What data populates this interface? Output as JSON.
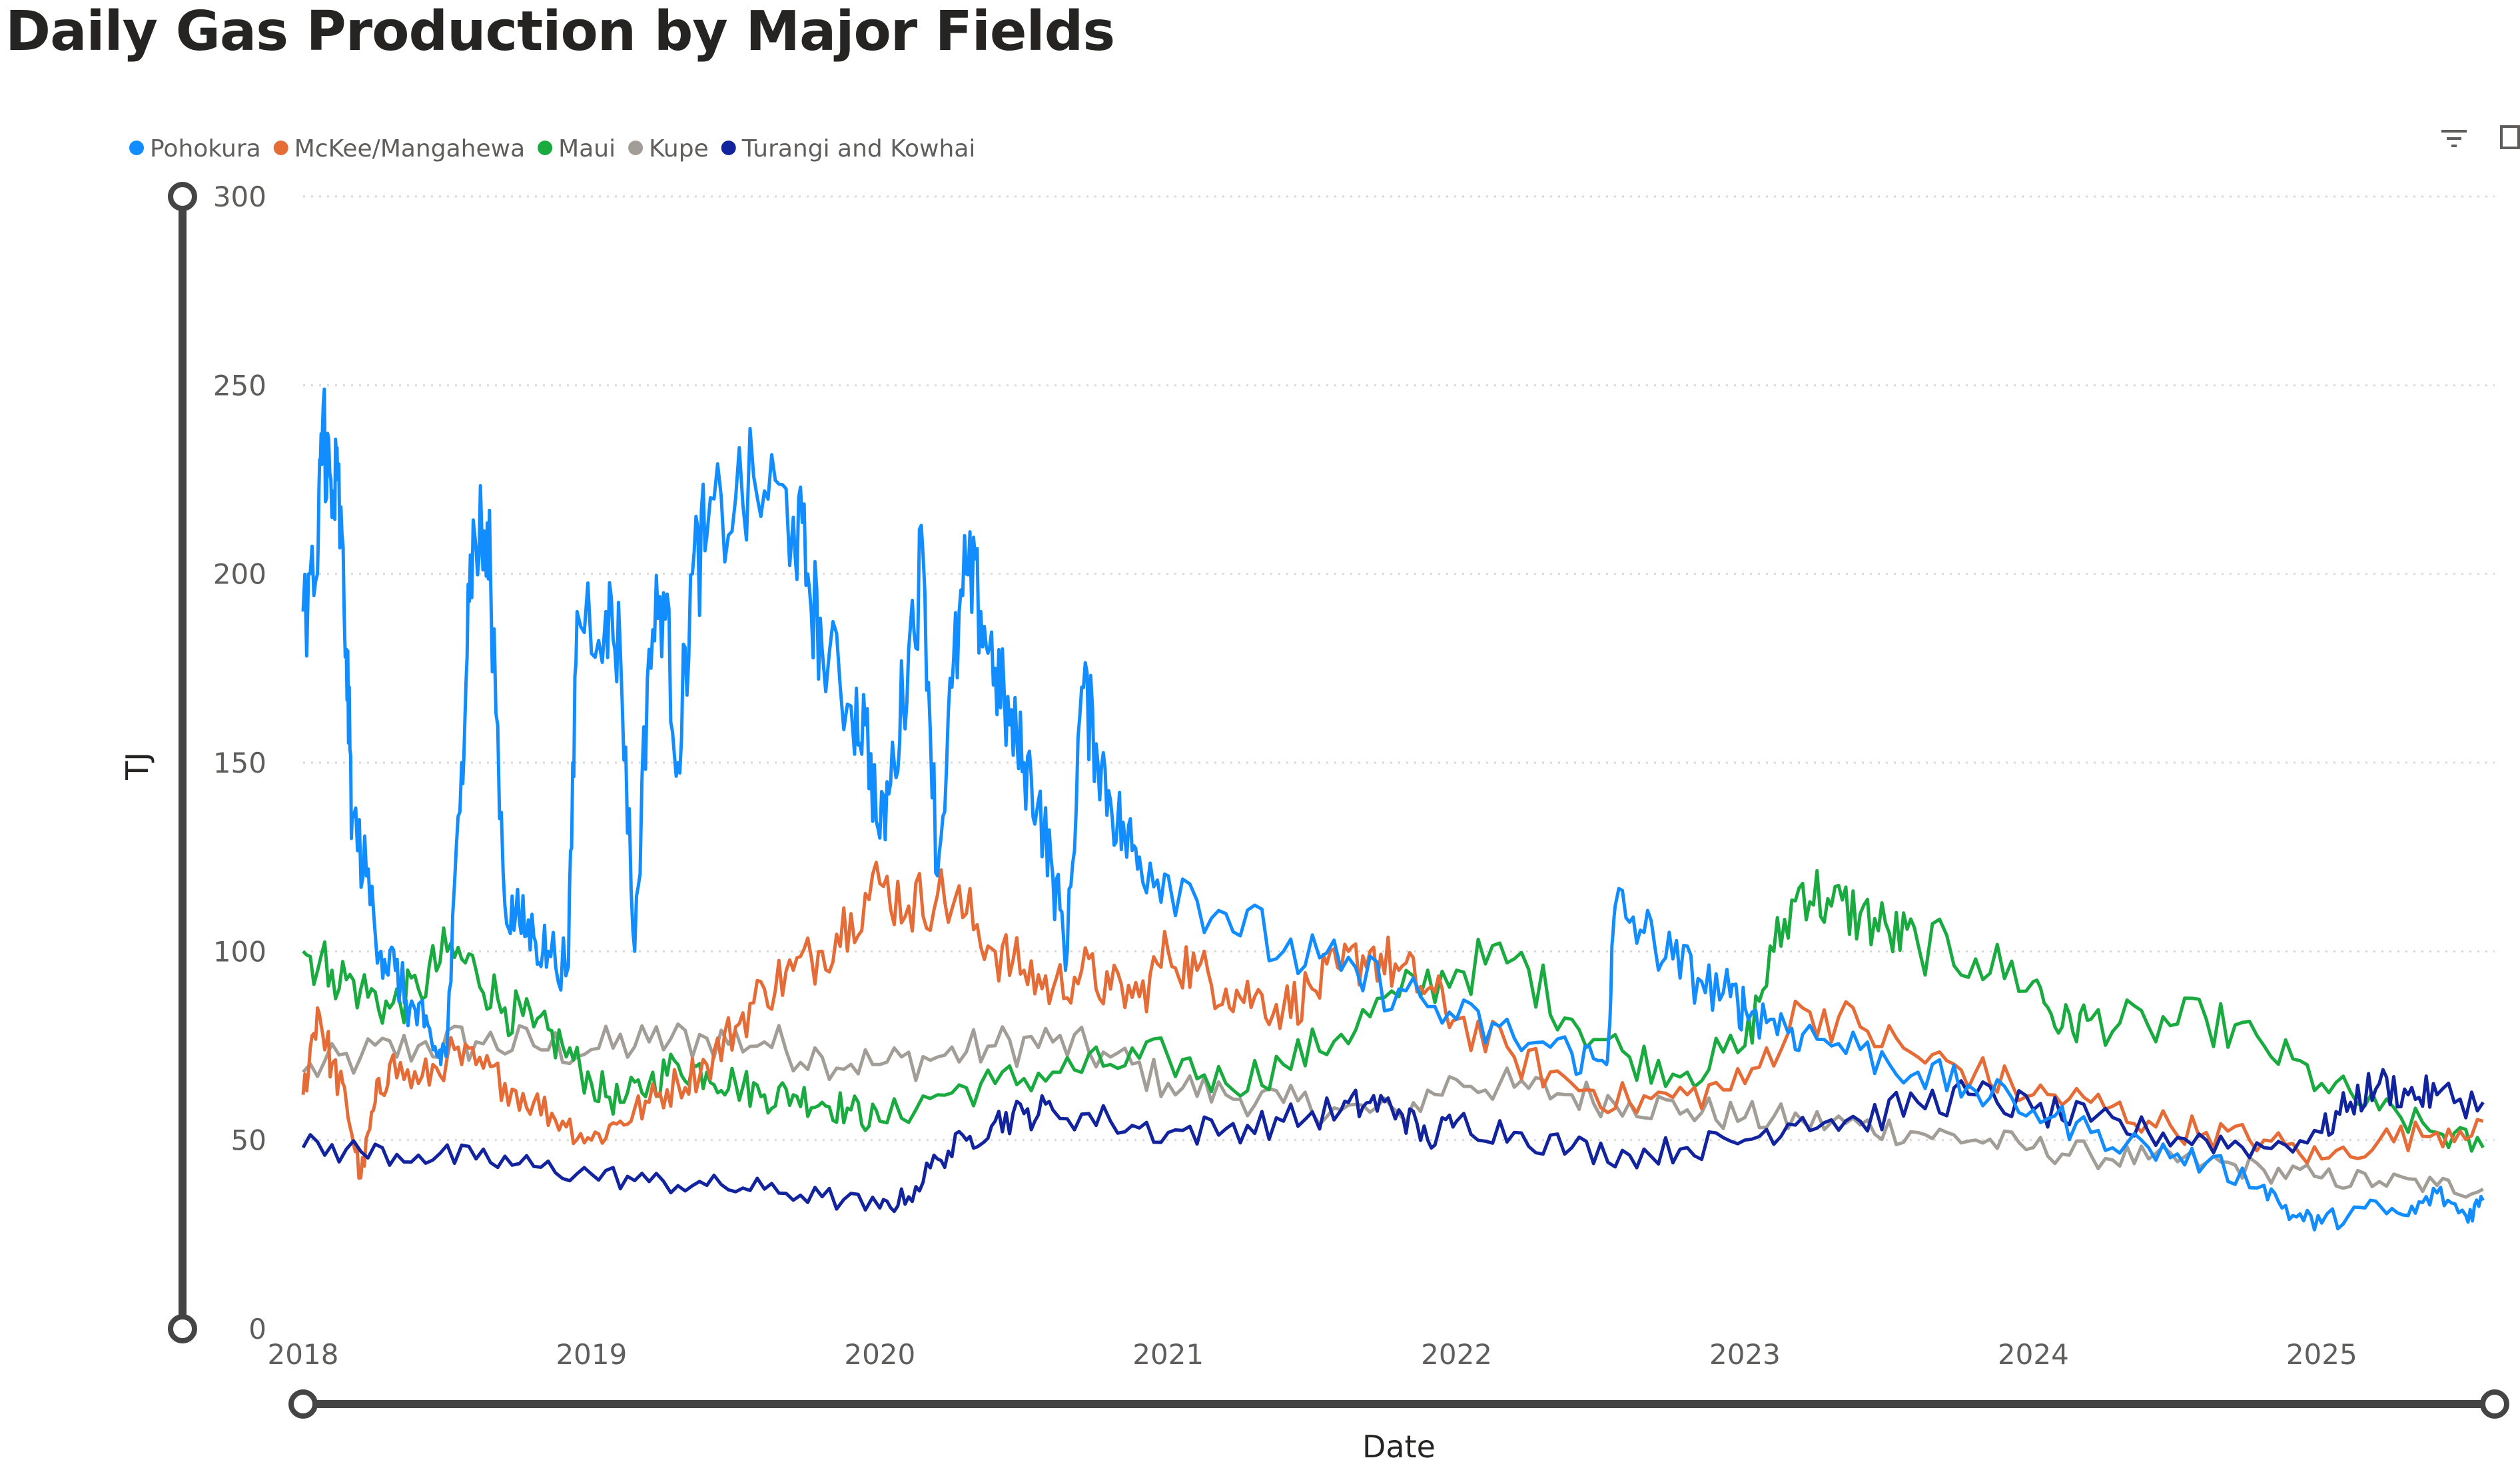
{
  "title": "Daily Gas Production by Major Fields",
  "chart_data": {
    "type": "line",
    "title": "Daily Gas Production by Major Fields",
    "xlabel": "Date",
    "ylabel": "TJ",
    "x_ticks": [
      "2018",
      "2019",
      "2020",
      "2021",
      "2022",
      "2023",
      "2024",
      "2025"
    ],
    "y_ticks": [
      0,
      50,
      100,
      150,
      200,
      250,
      300
    ],
    "xlim": [
      2018.0,
      2025.6
    ],
    "ylim": [
      0,
      300
    ],
    "grid": "horizontal dotted",
    "legend_position": "top-left",
    "series": [
      {
        "name": "Pohokura",
        "color": "#118DFF",
        "points": [
          [
            2018.0,
            190
          ],
          [
            2018.05,
            200
          ],
          [
            2018.07,
            245
          ],
          [
            2018.1,
            215
          ],
          [
            2018.12,
            225
          ],
          [
            2018.15,
            180
          ],
          [
            2018.17,
            135
          ],
          [
            2018.22,
            120
          ],
          [
            2018.27,
            100
          ],
          [
            2018.32,
            95
          ],
          [
            2018.37,
            85
          ],
          [
            2018.42,
            80
          ],
          [
            2018.47,
            72
          ],
          [
            2018.5,
            75
          ],
          [
            2018.55,
            150
          ],
          [
            2018.58,
            205
          ],
          [
            2018.62,
            210
          ],
          [
            2018.65,
            200
          ],
          [
            2018.7,
            112
          ],
          [
            2018.75,
            108
          ],
          [
            2018.8,
            104
          ],
          [
            2018.85,
            100
          ],
          [
            2018.92,
            96
          ],
          [
            2018.95,
            190
          ],
          [
            2019.05,
            190
          ],
          [
            2019.1,
            180
          ],
          [
            2019.15,
            100
          ],
          [
            2019.2,
            180
          ],
          [
            2019.25,
            195
          ],
          [
            2019.3,
            150
          ],
          [
            2019.35,
            200
          ],
          [
            2019.4,
            210
          ],
          [
            2019.5,
            220
          ],
          [
            2019.6,
            222
          ],
          [
            2019.7,
            215
          ],
          [
            2019.75,
            200
          ],
          [
            2019.8,
            180
          ],
          [
            2019.9,
            165
          ],
          [
            2019.95,
            160
          ],
          [
            2020.0,
            130
          ],
          [
            2020.05,
            150
          ],
          [
            2020.1,
            180
          ],
          [
            2020.15,
            205
          ],
          [
            2020.2,
            120
          ],
          [
            2020.25,
            170
          ],
          [
            2020.3,
            200
          ],
          [
            2020.35,
            190
          ],
          [
            2020.4,
            175
          ],
          [
            2020.45,
            160
          ],
          [
            2020.5,
            150
          ],
          [
            2020.55,
            140
          ],
          [
            2020.6,
            120
          ],
          [
            2020.65,
            100
          ],
          [
            2020.7,
            170
          ],
          [
            2020.75,
            155
          ],
          [
            2020.8,
            140
          ],
          [
            2020.85,
            130
          ],
          [
            2020.9,
            125
          ],
          [
            2021.0,
            120
          ],
          [
            2021.2,
            110
          ],
          [
            2021.4,
            100
          ],
          [
            2021.6,
            95
          ],
          [
            2021.8,
            90
          ],
          [
            2022.0,
            82
          ],
          [
            2022.2,
            77
          ],
          [
            2022.4,
            73
          ],
          [
            2022.52,
            70
          ],
          [
            2022.55,
            112
          ],
          [
            2022.65,
            105
          ],
          [
            2022.75,
            98
          ],
          [
            2022.85,
            92
          ],
          [
            2022.95,
            88
          ],
          [
            2023.0,
            85
          ],
          [
            2023.1,
            82
          ],
          [
            2023.2,
            78
          ],
          [
            2023.4,
            74
          ],
          [
            2023.6,
            68
          ],
          [
            2023.8,
            63
          ],
          [
            2024.0,
            58
          ],
          [
            2024.2,
            52
          ],
          [
            2024.4,
            48
          ],
          [
            2024.6,
            44
          ],
          [
            2024.8,
            38
          ],
          [
            2024.9,
            30
          ],
          [
            2025.0,
            28
          ],
          [
            2025.15,
            32
          ],
          [
            2025.3,
            30
          ],
          [
            2025.4,
            36
          ],
          [
            2025.5,
            30
          ],
          [
            2025.56,
            34
          ]
        ]
      },
      {
        "name": "McKee/Mangahewa",
        "color": "#E66C37",
        "points": [
          [
            2018.0,
            62
          ],
          [
            2018.05,
            85
          ],
          [
            2018.1,
            70
          ],
          [
            2018.15,
            60
          ],
          [
            2018.2,
            40
          ],
          [
            2018.25,
            60
          ],
          [
            2018.3,
            70
          ],
          [
            2018.4,
            65
          ],
          [
            2018.5,
            72
          ],
          [
            2018.6,
            70
          ],
          [
            2018.7,
            65
          ],
          [
            2018.8,
            60
          ],
          [
            2018.9,
            55
          ],
          [
            2019.0,
            50
          ],
          [
            2019.1,
            55
          ],
          [
            2019.2,
            60
          ],
          [
            2019.3,
            65
          ],
          [
            2019.4,
            70
          ],
          [
            2019.5,
            80
          ],
          [
            2019.6,
            90
          ],
          [
            2019.7,
            95
          ],
          [
            2019.8,
            100
          ],
          [
            2019.9,
            110
          ],
          [
            2020.0,
            118
          ],
          [
            2020.1,
            112
          ],
          [
            2020.2,
            115
          ],
          [
            2020.3,
            110
          ],
          [
            2020.4,
            100
          ],
          [
            2020.5,
            95
          ],
          [
            2020.6,
            90
          ],
          [
            2020.7,
            95
          ],
          [
            2020.8,
            90
          ],
          [
            2020.9,
            88
          ],
          [
            2021.0,
            100
          ],
          [
            2021.1,
            95
          ],
          [
            2021.2,
            90
          ],
          [
            2021.3,
            88
          ],
          [
            2021.4,
            85
          ],
          [
            2021.5,
            90
          ],
          [
            2021.6,
            95
          ],
          [
            2021.7,
            100
          ],
          [
            2021.8,
            95
          ],
          [
            2021.9,
            90
          ],
          [
            2022.0,
            82
          ],
          [
            2022.2,
            72
          ],
          [
            2022.4,
            65
          ],
          [
            2022.6,
            60
          ],
          [
            2022.8,
            62
          ],
          [
            2023.0,
            65
          ],
          [
            2023.2,
            85
          ],
          [
            2023.4,
            80
          ],
          [
            2023.6,
            72
          ],
          [
            2023.8,
            68
          ],
          [
            2024.0,
            62
          ],
          [
            2024.2,
            60
          ],
          [
            2024.4,
            55
          ],
          [
            2024.6,
            52
          ],
          [
            2024.8,
            50
          ],
          [
            2025.0,
            45
          ],
          [
            2025.2,
            50
          ],
          [
            2025.4,
            52
          ],
          [
            2025.56,
            55
          ]
        ]
      },
      {
        "name": "Maui",
        "color": "#1AAB40",
        "points": [
          [
            2018.0,
            100
          ],
          [
            2018.1,
            95
          ],
          [
            2018.2,
            90
          ],
          [
            2018.3,
            85
          ],
          [
            2018.4,
            90
          ],
          [
            2018.5,
            100
          ],
          [
            2018.6,
            95
          ],
          [
            2018.7,
            85
          ],
          [
            2018.8,
            80
          ],
          [
            2018.9,
            75
          ],
          [
            2019.0,
            65
          ],
          [
            2019.1,
            60
          ],
          [
            2019.2,
            65
          ],
          [
            2019.3,
            70
          ],
          [
            2019.4,
            68
          ],
          [
            2019.5,
            65
          ],
          [
            2019.6,
            62
          ],
          [
            2019.7,
            62
          ],
          [
            2019.8,
            60
          ],
          [
            2019.9,
            58
          ],
          [
            2020.0,
            55
          ],
          [
            2020.2,
            62
          ],
          [
            2020.4,
            65
          ],
          [
            2020.6,
            68
          ],
          [
            2020.8,
            70
          ],
          [
            2021.0,
            72
          ],
          [
            2021.2,
            65
          ],
          [
            2021.4,
            70
          ],
          [
            2021.6,
            78
          ],
          [
            2021.8,
            88
          ],
          [
            2022.0,
            95
          ],
          [
            2022.2,
            98
          ],
          [
            2022.4,
            82
          ],
          [
            2022.6,
            72
          ],
          [
            2022.8,
            68
          ],
          [
            2023.0,
            75
          ],
          [
            2023.1,
            100
          ],
          [
            2023.2,
            118
          ],
          [
            2023.3,
            112
          ],
          [
            2023.4,
            110
          ],
          [
            2023.5,
            105
          ],
          [
            2023.6,
            102
          ],
          [
            2023.8,
            98
          ],
          [
            2024.0,
            92
          ],
          [
            2024.1,
            80
          ],
          [
            2024.2,
            82
          ],
          [
            2024.4,
            80
          ],
          [
            2024.6,
            82
          ],
          [
            2024.8,
            75
          ],
          [
            2025.0,
            65
          ],
          [
            2025.2,
            58
          ],
          [
            2025.4,
            52
          ],
          [
            2025.56,
            48
          ]
        ]
      },
      {
        "name": "Kupe",
        "color": "#A29D96",
        "points": [
          [
            2018.0,
            68
          ],
          [
            2018.2,
            72
          ],
          [
            2018.4,
            75
          ],
          [
            2018.6,
            76
          ],
          [
            2018.8,
            75
          ],
          [
            2019.0,
            74
          ],
          [
            2019.2,
            76
          ],
          [
            2019.4,
            77
          ],
          [
            2019.6,
            76
          ],
          [
            2019.8,
            72
          ],
          [
            2020.0,
            70
          ],
          [
            2020.2,
            72
          ],
          [
            2020.4,
            75
          ],
          [
            2020.6,
            76
          ],
          [
            2020.8,
            72
          ],
          [
            2021.0,
            65
          ],
          [
            2021.2,
            62
          ],
          [
            2021.4,
            60
          ],
          [
            2021.6,
            58
          ],
          [
            2021.8,
            57
          ],
          [
            2022.0,
            66
          ],
          [
            2022.2,
            64
          ],
          [
            2022.4,
            62
          ],
          [
            2022.6,
            60
          ],
          [
            2022.8,
            58
          ],
          [
            2023.0,
            56
          ],
          [
            2023.2,
            55
          ],
          [
            2023.4,
            54
          ],
          [
            2023.6,
            52
          ],
          [
            2023.8,
            50
          ],
          [
            2024.0,
            48
          ],
          [
            2024.2,
            46
          ],
          [
            2024.4,
            45
          ],
          [
            2024.6,
            44
          ],
          [
            2024.8,
            42
          ],
          [
            2025.0,
            40
          ],
          [
            2025.2,
            39
          ],
          [
            2025.4,
            38
          ],
          [
            2025.56,
            37
          ]
        ]
      },
      {
        "name": "Turangi and Kowhai",
        "color": "#12239E",
        "points": [
          [
            2018.0,
            48
          ],
          [
            2018.2,
            47
          ],
          [
            2018.4,
            46
          ],
          [
            2018.6,
            45
          ],
          [
            2018.8,
            43
          ],
          [
            2019.0,
            41
          ],
          [
            2019.2,
            39
          ],
          [
            2019.4,
            38
          ],
          [
            2019.6,
            37
          ],
          [
            2019.8,
            35
          ],
          [
            2020.0,
            32
          ],
          [
            2020.1,
            35
          ],
          [
            2020.2,
            45
          ],
          [
            2020.3,
            50
          ],
          [
            2020.4,
            55
          ],
          [
            2020.5,
            57
          ],
          [
            2020.6,
            58
          ],
          [
            2020.8,
            55
          ],
          [
            2021.0,
            52
          ],
          [
            2021.2,
            53
          ],
          [
            2021.4,
            55
          ],
          [
            2021.6,
            58
          ],
          [
            2021.7,
            60
          ],
          [
            2021.8,
            58
          ],
          [
            2021.9,
            50
          ],
          [
            2022.0,
            55
          ],
          [
            2022.2,
            52
          ],
          [
            2022.4,
            48
          ],
          [
            2022.6,
            46
          ],
          [
            2022.8,
            48
          ],
          [
            2023.0,
            50
          ],
          [
            2023.2,
            56
          ],
          [
            2023.4,
            55
          ],
          [
            2023.6,
            60
          ],
          [
            2023.8,
            62
          ],
          [
            2024.0,
            58
          ],
          [
            2024.2,
            55
          ],
          [
            2024.4,
            52
          ],
          [
            2024.6,
            50
          ],
          [
            2024.8,
            48
          ],
          [
            2025.0,
            52
          ],
          [
            2025.1,
            60
          ],
          [
            2025.2,
            65
          ],
          [
            2025.3,
            62
          ],
          [
            2025.4,
            62
          ],
          [
            2025.56,
            60
          ]
        ]
      }
    ]
  }
}
